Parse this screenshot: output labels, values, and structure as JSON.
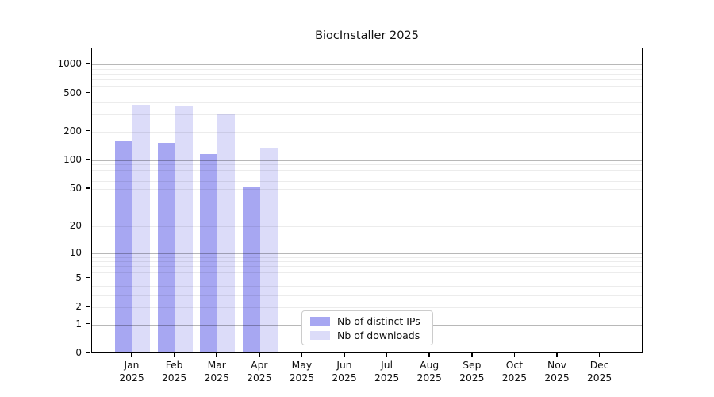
{
  "title": "BiocInstaller 2025",
  "colors": {
    "distinct_ips_bar": "#a7a7f2",
    "downloads_bar": "#dcdcf9",
    "axis": "#000000",
    "grid_major": "#b8b8b8",
    "grid_minor": "#ececec",
    "legend_border": "#cccccc",
    "background": "#ffffff"
  },
  "legend": {
    "items": [
      {
        "label": "Nb of distinct IPs",
        "color": "#a7a7f2"
      },
      {
        "label": "Nb of downloads",
        "color": "#dcdcf9"
      }
    ]
  },
  "chart_data": {
    "type": "bar",
    "title": "BiocInstaller 2025",
    "xlabel": "",
    "ylabel": "",
    "yscale": "log1p",
    "ylim": [
      0,
      1460
    ],
    "grid": true,
    "legend_position": "bottom-center-inside",
    "categories": [
      "Jan 2025",
      "Feb 2025",
      "Mar 2025",
      "Apr 2025",
      "May 2025",
      "Jun 2025",
      "Jul 2025",
      "Aug 2025",
      "Sep 2025",
      "Oct 2025",
      "Nov 2025",
      "Dec 2025"
    ],
    "x_ticks": [
      {
        "month": "Jan",
        "year": "2025"
      },
      {
        "month": "Feb",
        "year": "2025"
      },
      {
        "month": "Mar",
        "year": "2025"
      },
      {
        "month": "Apr",
        "year": "2025"
      },
      {
        "month": "May",
        "year": "2025"
      },
      {
        "month": "Jun",
        "year": "2025"
      },
      {
        "month": "Jul",
        "year": "2025"
      },
      {
        "month": "Aug",
        "year": "2025"
      },
      {
        "month": "Sep",
        "year": "2025"
      },
      {
        "month": "Oct",
        "year": "2025"
      },
      {
        "month": "Nov",
        "year": "2025"
      },
      {
        "month": "Dec",
        "year": "2025"
      }
    ],
    "y_ticks": [
      {
        "value": 0,
        "label": "0"
      },
      {
        "value": 1,
        "label": "1"
      },
      {
        "value": 2,
        "label": "2"
      },
      {
        "value": 5,
        "label": "5"
      },
      {
        "value": 10,
        "label": "10"
      },
      {
        "value": 20,
        "label": "20"
      },
      {
        "value": 50,
        "label": "50"
      },
      {
        "value": 100,
        "label": "100"
      },
      {
        "value": 200,
        "label": "200"
      },
      {
        "value": 500,
        "label": "500"
      },
      {
        "value": 1000,
        "label": "1000"
      }
    ],
    "series": [
      {
        "name": "Nb of distinct IPs",
        "color": "#a7a7f2",
        "values": [
          155,
          146,
          112,
          50,
          null,
          null,
          null,
          null,
          null,
          null,
          null,
          null
        ]
      },
      {
        "name": "Nb of downloads",
        "color": "#dcdcf9",
        "values": [
          365,
          350,
          290,
          128,
          null,
          null,
          null,
          null,
          null,
          null,
          null,
          null
        ]
      }
    ]
  }
}
